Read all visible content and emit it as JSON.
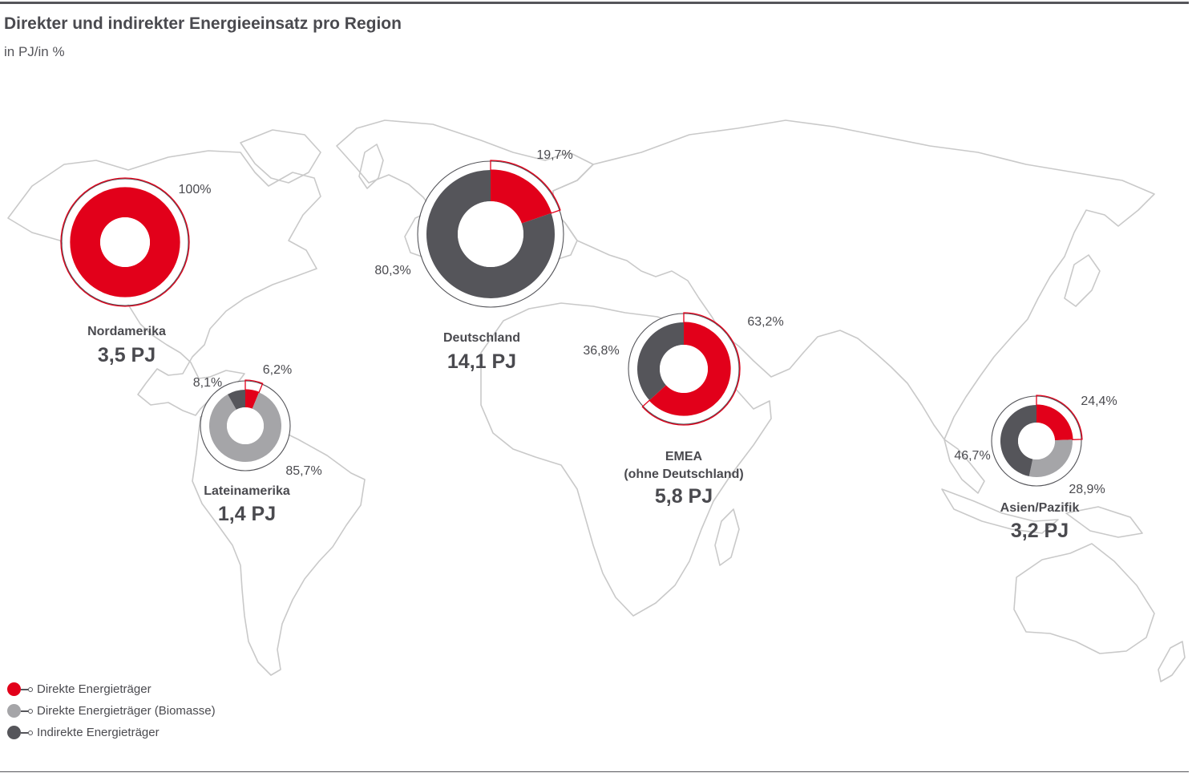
{
  "title": "Direkter und indirekter Energieeinsatz pro Region",
  "subtitle": "in PJ/in %",
  "colors": {
    "direct": "#e2001a",
    "biomass": "#a5a5a8",
    "indirect": "#55555a",
    "map": "#c9c9c9"
  },
  "legend": [
    {
      "label": "Direkte Energieträger",
      "color": "#e2001a"
    },
    {
      "label": "Direkte Energieträger (Biomasse)",
      "color": "#a5a5a8"
    },
    {
      "label": "Indirekte Energieträger",
      "color": "#55555a"
    }
  ],
  "chart_data": {
    "type": "pie",
    "title": "Direkter und indirekter Energieeinsatz pro Region",
    "subtitle": "in PJ/in %",
    "series_names": [
      "Direkte Energieträger",
      "Direkte Energieträger (Biomasse)",
      "Indirekte Energieträger"
    ],
    "regions": [
      {
        "name": "Nordamerika",
        "total": "3,5 PJ",
        "total_value": 3.5,
        "values": [
          100,
          0,
          0
        ],
        "labels": [
          "100%",
          "",
          ""
        ]
      },
      {
        "name": "Deutschland",
        "total": "14,1 PJ",
        "total_value": 14.1,
        "values": [
          19.7,
          0,
          80.3
        ],
        "labels": [
          "19,7%",
          "",
          "80,3%"
        ]
      },
      {
        "name": "Lateinamerika",
        "total": "1,4 PJ",
        "total_value": 1.4,
        "values": [
          6.2,
          85.7,
          8.1
        ],
        "labels": [
          "6,2%",
          "85,7%",
          "8,1%"
        ]
      },
      {
        "name": "EMEA\n(ohne Deutschland)",
        "total": "5,8 PJ",
        "total_value": 5.8,
        "values": [
          63.2,
          0,
          36.8
        ],
        "labels": [
          "63,2%",
          "",
          "36,8%"
        ]
      },
      {
        "name": "Asien/Pazifik",
        "total": "3,2 PJ",
        "total_value": 3.2,
        "values": [
          24.4,
          28.9,
          46.7
        ],
        "labels": [
          "24,4%",
          "28,9%",
          "46,7%"
        ]
      }
    ]
  }
}
